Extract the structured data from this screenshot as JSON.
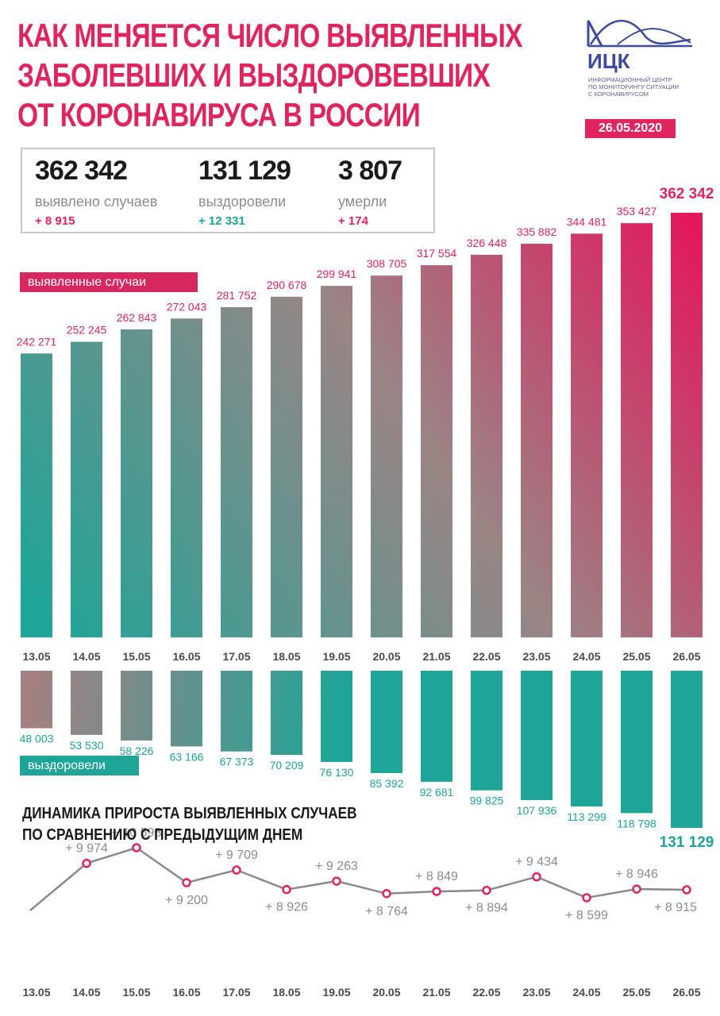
{
  "title": {
    "line1": "КАК МЕНЯЕТСЯ ЧИСЛО ВЫЯВЛЕННЫХ",
    "line2": "ЗАБОЛЕВШИХ И ВЫЗДОРОВЕВШИХ",
    "line3": "ОТ КОРОНАВИРУСА В РОССИИ"
  },
  "logo": {
    "word": "ИЦК",
    "sub1": "ИНФОРМАЦИОННЫЙ ЦЕНТР",
    "sub2": "ПО МОНИТОРИНГУ СИТУАЦИИ",
    "sub3": "С КОРОНАВИРУСОМ"
  },
  "date": "26.05.2020",
  "stats": {
    "cases": {
      "value": "362 342",
      "label": "выявлено случаев",
      "delta": "+ 8 915"
    },
    "recovered": {
      "value": "131 129",
      "label": "выздоровели",
      "delta": "+ 12 331"
    },
    "deaths": {
      "value": "3 807",
      "label": "умерли",
      "delta": "+ 174"
    }
  },
  "colors": {
    "accent": "#e0245e",
    "teal": "#1ea598",
    "grey": "#8c8c8c",
    "brand": "#3d4aa0"
  },
  "legend": {
    "cases": "выявленные случаи",
    "recovered": "выздоровели"
  },
  "growth_title": {
    "line1": "ДИНАМИКА ПРИРОСТА ВЫЯВЛЕННЫХ СЛУЧАЕВ",
    "line2": "ПО СРАВНЕНИЮ С ПРЕДЫДУЩИМ ДНЕМ"
  },
  "chart_data": [
    {
      "type": "bar",
      "categories": [
        "13.05",
        "14.05",
        "15.05",
        "16.05",
        "17.05",
        "18.05",
        "19.05",
        "20.05",
        "21.05",
        "22.05",
        "23.05",
        "24.05",
        "25.05",
        "26.05"
      ],
      "series": [
        {
          "name": "выявленные случаи",
          "values": [
            242271,
            252245,
            262843,
            272043,
            281752,
            290678,
            299941,
            308705,
            317554,
            326448,
            335882,
            344481,
            353427,
            362342
          ]
        }
      ],
      "labels": [
        "242 271",
        "252 245",
        "262 843",
        "272 043",
        "281 752",
        "290 678",
        "299 941",
        "308 705",
        "317 554",
        "326 448",
        "335 882",
        "344 481",
        "353 427",
        "362 342"
      ]
    },
    {
      "type": "bar",
      "categories": [
        "13.05",
        "14.05",
        "15.05",
        "16.05",
        "17.05",
        "18.05",
        "19.05",
        "20.05",
        "21.05",
        "22.05",
        "23.05",
        "24.05",
        "25.05",
        "26.05"
      ],
      "series": [
        {
          "name": "выздоровели",
          "values": [
            48003,
            53530,
            58226,
            63166,
            67373,
            70209,
            76130,
            85392,
            92681,
            99825,
            107936,
            113299,
            118798,
            131129
          ]
        }
      ],
      "labels": [
        "48 003",
        "53 530",
        "58 226",
        "63 166",
        "67 373",
        "70 209",
        "76 130",
        "85 392",
        "92 681",
        "99 825",
        "107 936",
        "113 299",
        "118 798",
        "131 129"
      ]
    },
    {
      "type": "line",
      "title": "ДИНАМИКА ПРИРОСТА ВЫЯВЛЕННЫХ СЛУЧАЕВ ПО СРАВНЕНИЮ С ПРЕДЫДУЩИМ ДНЕМ",
      "categories": [
        "13.05",
        "14.05",
        "15.05",
        "16.05",
        "17.05",
        "18.05",
        "19.05",
        "20.05",
        "21.05",
        "22.05",
        "23.05",
        "24.05",
        "25.05",
        "26.05"
      ],
      "values": [
        null,
        9974,
        10598,
        9200,
        9709,
        8926,
        9263,
        8764,
        8849,
        8894,
        9434,
        8599,
        8946,
        8915
      ],
      "labels": [
        "",
        "+ 9 974",
        "+ 10 598",
        "+ 9 200",
        "+ 9 709",
        "+ 8 926",
        "+ 9 263",
        "+ 8 764",
        "+ 8 849",
        "+ 8 894",
        "+ 9 434",
        "+ 8 599",
        "+ 8 946",
        "+ 8 915"
      ]
    }
  ]
}
